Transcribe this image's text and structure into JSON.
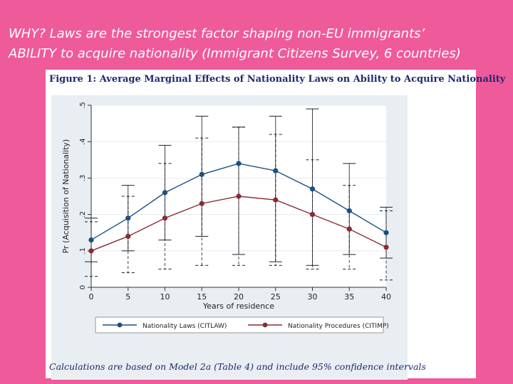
{
  "slide": {
    "title_line1": "WHY? Laws are the strongest factor shaping non-EU immigrants’",
    "title_line2": "ABILITY to acquire nationality (Immigrant Citizens Survey, 6 countries)"
  },
  "figure": {
    "title": "Figure 1: Average Marginal Effects of Nationality Laws on Ability to Acquire Nationality",
    "caption": "Calculations are based on Model 2a (Table 4) and include 95% confidence intervals"
  },
  "colors": {
    "background": "#ee5a9a",
    "plot_bg": "#e9eef3",
    "laws_series": "#1a4f80",
    "procedures_series": "#8a2a33",
    "ci_lines": "#1f1f2b"
  },
  "chart_data": {
    "type": "line",
    "xlabel": "Years of residence",
    "ylabel": "Pr (Acquisition of Nationality)",
    "x": [
      0,
      5,
      10,
      15,
      20,
      25,
      30,
      35,
      40
    ],
    "x_ticks": [
      "0",
      "5",
      "10",
      "15",
      "20",
      "25",
      "30",
      "35",
      "40"
    ],
    "y_ticks": [
      "0",
      ".1",
      ".2",
      ".3",
      ".4",
      ".5"
    ],
    "xlim": [
      0,
      40
    ],
    "ylim": [
      0,
      0.5
    ],
    "grid": true,
    "legend_position": "bottom",
    "series": [
      {
        "name": "Nationality Laws (CITLAW)",
        "values": [
          0.13,
          0.19,
          0.26,
          0.31,
          0.34,
          0.32,
          0.27,
          0.21,
          0.15
        ],
        "ci_low": [
          0.07,
          0.1,
          0.13,
          0.14,
          0.09,
          0.07,
          0.06,
          0.09,
          0.08
        ],
        "ci_high": [
          0.19,
          0.28,
          0.39,
          0.47,
          0.44,
          0.47,
          0.49,
          0.34,
          0.22
        ]
      },
      {
        "name": "Nationality Procedures (CITIMP)",
        "values": [
          0.1,
          0.14,
          0.19,
          0.23,
          0.25,
          0.24,
          0.2,
          0.16,
          0.11
        ],
        "ci_low": [
          0.03,
          0.04,
          0.05,
          0.06,
          0.06,
          0.06,
          0.05,
          0.05,
          0.02
        ],
        "ci_high": [
          0.18,
          0.25,
          0.34,
          0.41,
          0.44,
          0.42,
          0.35,
          0.28,
          0.21
        ]
      }
    ]
  }
}
